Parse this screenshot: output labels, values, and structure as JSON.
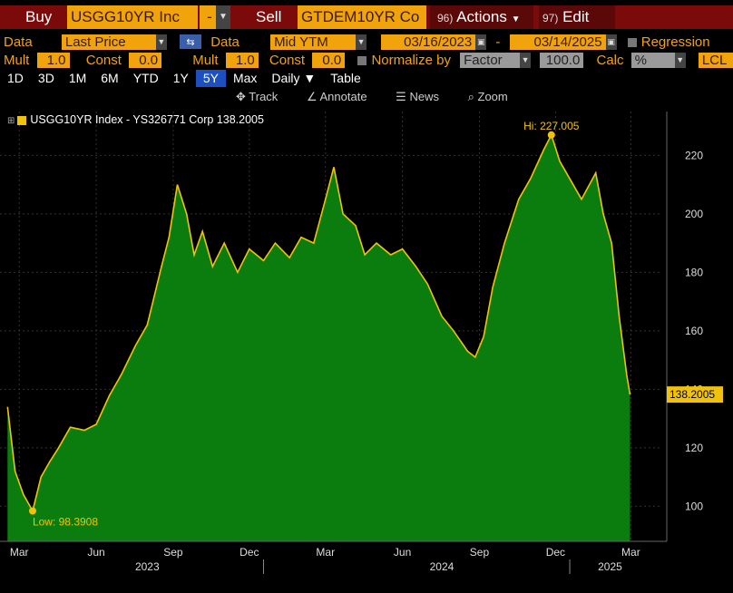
{
  "toolbar": {
    "buy_label": "Buy",
    "buy_ticker": "USGG10YR Inc",
    "buy_dash": "-",
    "sell_label": "Sell",
    "sell_ticker": "GTDEM10YR Co",
    "actions_num": "96)",
    "actions_label": "Actions",
    "edit_num": "97)",
    "edit_label": "Edit"
  },
  "controls": {
    "data1_label": "Data",
    "data1_value": "Last Price",
    "data2_label": "Data",
    "data2_value": "Mid YTM",
    "date_start": "03/16/2023",
    "date_sep": "-",
    "date_end": "03/14/2025",
    "regression_label": "Regression",
    "mult1_label": "Mult",
    "mult1_value": "1.0",
    "const1_label": "Const",
    "const1_value": "0.0",
    "mult2_label": "Mult",
    "mult2_value": "1.0",
    "const2_label": "Const",
    "const2_value": "0.0",
    "normalize_label": "Normalize by",
    "normalize_value": "Factor",
    "normalize_factor": "100.0",
    "calc_label": "Calc",
    "calc_value": "%",
    "currency_value": "LCL"
  },
  "tabs": [
    "1D",
    "3D",
    "1M",
    "6M",
    "YTD",
    "1Y",
    "5Y",
    "Max",
    "Daily ▼",
    "Table"
  ],
  "active_tab": "5Y",
  "tools": {
    "track": "Track",
    "annotate": "Annotate",
    "news": "News",
    "zoom": "Zoom"
  },
  "legend": {
    "text": "USGG10YR Index - YS326771 Corp 138.2005"
  },
  "chart_data": {
    "type": "area",
    "series": [
      {
        "name": "USGG10YR Index - YS326771 Corp",
        "x": [
          "2023-03-01",
          "2023-03-10",
          "2023-03-20",
          "2023-03-31",
          "2023-04-10",
          "2023-04-20",
          "2023-05-01",
          "2023-05-15",
          "2023-06-01",
          "2023-06-15",
          "2023-07-01",
          "2023-07-15",
          "2023-08-01",
          "2023-08-15",
          "2023-09-01",
          "2023-09-10",
          "2023-09-20",
          "2023-10-01",
          "2023-10-10",
          "2023-10-20",
          "2023-11-01",
          "2023-11-15",
          "2023-12-01",
          "2023-12-15",
          "2024-01-01",
          "2024-01-15",
          "2024-02-01",
          "2024-02-15",
          "2024-03-01",
          "2024-03-15",
          "2024-03-25",
          "2024-04-05",
          "2024-04-20",
          "2024-05-01",
          "2024-05-15",
          "2024-06-01",
          "2024-06-15",
          "2024-07-01",
          "2024-07-15",
          "2024-08-01",
          "2024-08-15",
          "2024-09-01",
          "2024-09-10",
          "2024-09-20",
          "2024-10-01",
          "2024-10-15",
          "2024-11-01",
          "2024-11-15",
          "2024-12-01",
          "2024-12-10",
          "2024-12-20",
          "2025-01-01",
          "2025-01-15",
          "2025-02-01",
          "2025-02-10",
          "2025-02-20",
          "2025-03-01",
          "2025-03-10",
          "2025-03-14"
        ],
        "values": [
          134,
          112,
          104,
          98.3908,
          110,
          115,
          120,
          127,
          126,
          128,
          138,
          145,
          155,
          162,
          182,
          192,
          210,
          200,
          186,
          194,
          182,
          190,
          180,
          188,
          184,
          190,
          185,
          192,
          190,
          205,
          216,
          200,
          196,
          186,
          190,
          186,
          188,
          182,
          176,
          165,
          160,
          153,
          151,
          158,
          175,
          190,
          205,
          212,
          222,
          227.005,
          218,
          212,
          205,
          214,
          200,
          190,
          165,
          145,
          138.2005
        ]
      }
    ],
    "ylim": [
      88,
      235
    ],
    "yticks": [
      100,
      120,
      140,
      160,
      180,
      200,
      220
    ],
    "xticks": [
      "Mar",
      "Jun",
      "Sep",
      "Dec",
      "Mar",
      "Jun",
      "Sep",
      "Dec",
      "Mar"
    ],
    "years": [
      "2023",
      "2024",
      "2025"
    ],
    "high_label": "Hi: 227.005",
    "low_label": "Low: 98.3908",
    "last_value_label": "138.2005",
    "colors": {
      "fill": "#0b7d0f",
      "line": "#f0c20a",
      "bg": "#000000"
    }
  }
}
